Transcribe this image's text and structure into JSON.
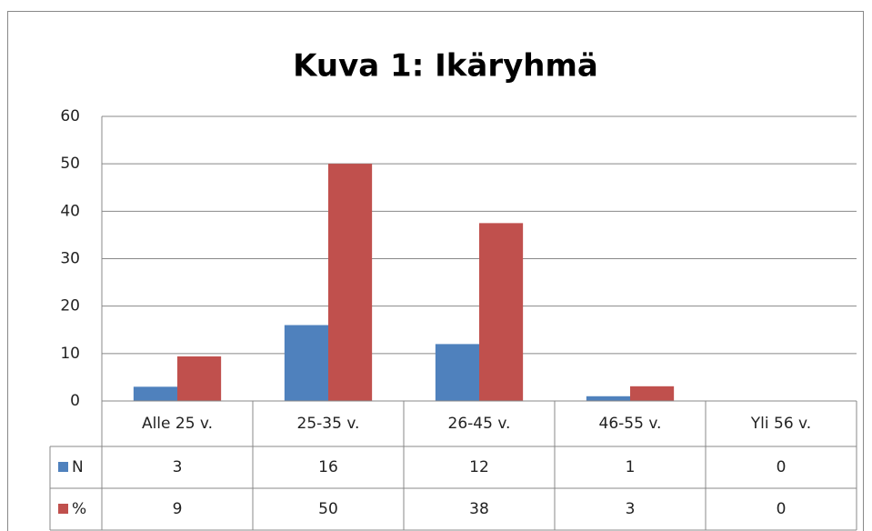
{
  "chart_data": {
    "type": "bar",
    "title": "Kuva 1: Ikäryhmä",
    "categories": [
      "Alle 25 v.",
      "25-35 v.",
      "26-45 v.",
      "46-55 v.",
      "Yli 56 v."
    ],
    "series": [
      {
        "name": "N",
        "color": "#4f81bd",
        "values": [
          3,
          16,
          12,
          1,
          0
        ]
      },
      {
        "name": "%",
        "color": "#c0504d",
        "values": [
          9.4,
          50,
          37.5,
          3.1,
          0
        ],
        "value_labels": [
          "9",
          "50",
          "38",
          "3",
          "0"
        ]
      }
    ],
    "ylim": [
      0,
      60
    ],
    "yticks": [
      0,
      10,
      20,
      30,
      40,
      50,
      60
    ],
    "grid": true
  }
}
